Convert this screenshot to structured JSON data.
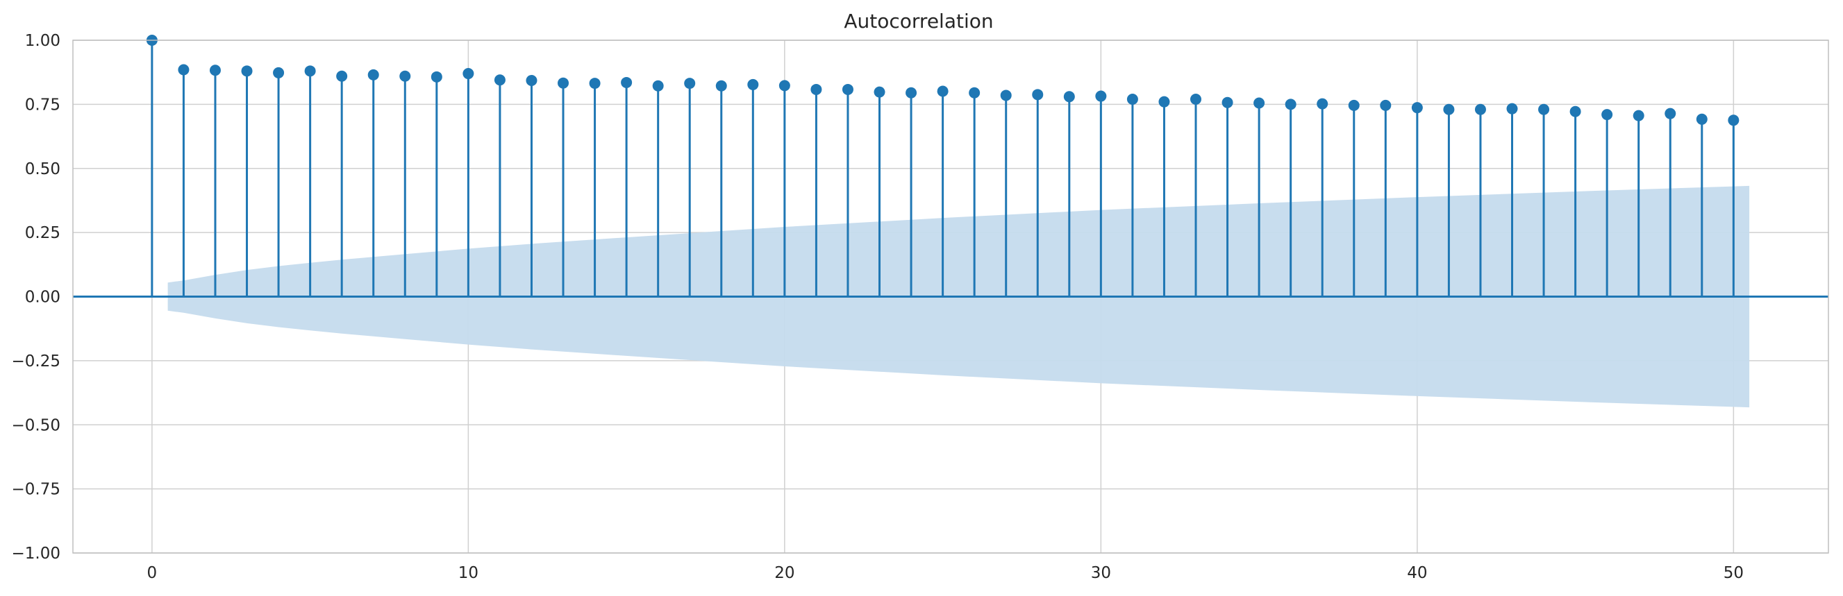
{
  "chart_data": {
    "type": "stem",
    "title": "Autocorrelation",
    "xlabel": "",
    "ylabel": "",
    "xlim": [
      -2.5,
      53
    ],
    "ylim": [
      -1.0,
      1.0
    ],
    "x_ticks": [
      0,
      10,
      20,
      30,
      40,
      50
    ],
    "x_tick_labels": [
      "0",
      "10",
      "20",
      "30",
      "40",
      "50"
    ],
    "y_ticks": [
      -1.0,
      -0.75,
      -0.5,
      -0.25,
      0.0,
      0.25,
      0.5,
      0.75,
      1.0
    ],
    "y_tick_labels": [
      "−1.00",
      "−0.75",
      "−0.50",
      "−0.25",
      "0.00",
      "0.25",
      "0.50",
      "0.75",
      "1.00"
    ],
    "grid": true,
    "colors": {
      "stem": "#1f77b4",
      "band": "#c5dbed",
      "grid": "#d0d0d0",
      "axes_edge": "#bfbfbf"
    },
    "lags": [
      0,
      1,
      2,
      3,
      4,
      5,
      6,
      7,
      8,
      9,
      10,
      11,
      12,
      13,
      14,
      15,
      16,
      17,
      18,
      19,
      20,
      21,
      22,
      23,
      24,
      25,
      26,
      27,
      28,
      29,
      30,
      31,
      32,
      33,
      34,
      35,
      36,
      37,
      38,
      39,
      40,
      41,
      42,
      43,
      44,
      45,
      46,
      47,
      48,
      49,
      50
    ],
    "acf": [
      1.0,
      0.885,
      0.883,
      0.88,
      0.873,
      0.88,
      0.86,
      0.865,
      0.86,
      0.857,
      0.87,
      0.845,
      0.843,
      0.833,
      0.832,
      0.835,
      0.822,
      0.832,
      0.822,
      0.827,
      0.823,
      0.808,
      0.808,
      0.798,
      0.795,
      0.801,
      0.795,
      0.785,
      0.788,
      0.78,
      0.782,
      0.77,
      0.76,
      0.77,
      0.757,
      0.755,
      0.75,
      0.752,
      0.746,
      0.746,
      0.737,
      0.73,
      0.73,
      0.733,
      0.73,
      0.722,
      0.71,
      0.706,
      0.714,
      0.692,
      0.688
    ],
    "confidence_band": {
      "lags": [
        0.5,
        1,
        2,
        3,
        4,
        5,
        6,
        8,
        10,
        12,
        15,
        20,
        25,
        30,
        35,
        40,
        45,
        50,
        50.5
      ],
      "upper": [
        0.055,
        0.063,
        0.085,
        0.104,
        0.119,
        0.132,
        0.144,
        0.166,
        0.187,
        0.206,
        0.231,
        0.272,
        0.307,
        0.338,
        0.364,
        0.388,
        0.41,
        0.43,
        0.432
      ]
    }
  }
}
